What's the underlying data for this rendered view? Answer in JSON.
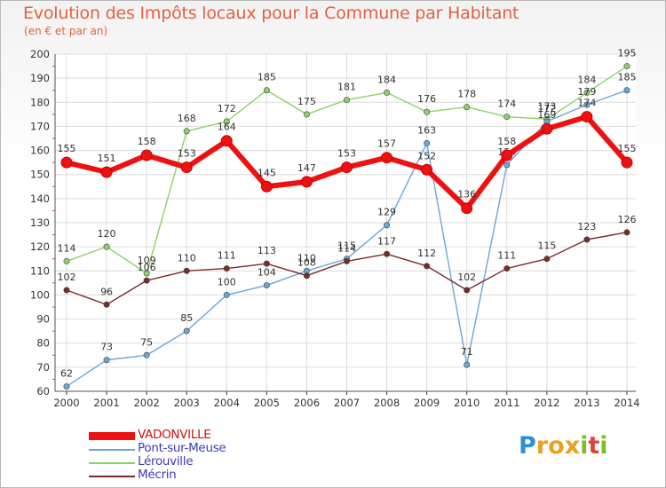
{
  "header": {
    "title": "Evolution des Impôts locaux pour la Commune par Habitant",
    "subtitle": "(en € et par an)"
  },
  "chart_data": {
    "type": "line",
    "title": "Evolution des Impôts locaux pour la Commune par Habitant",
    "ylabel": "(en € et par an)",
    "ylim": [
      60,
      200
    ],
    "yticks": [
      "60",
      "70",
      "80",
      "90",
      "100",
      "110",
      "120",
      "130",
      "140",
      "150",
      "160",
      "170",
      "180",
      "190",
      "200"
    ],
    "x": [
      "2000",
      "2001",
      "2002",
      "2003",
      "2004",
      "2005",
      "2006",
      "2007",
      "2008",
      "2009",
      "2010",
      "2011",
      "2012",
      "2013",
      "2014"
    ],
    "series": [
      {
        "name": "Lérouville",
        "color": "#8dd16a",
        "values": [
          114,
          120,
          109,
          168,
          172,
          185,
          175,
          181,
          184,
          176,
          178,
          174,
          173,
          184,
          195
        ]
      },
      {
        "name": "Pont-sur-Meuse",
        "color": "#6ba6d8",
        "values": [
          62,
          73,
          75,
          85,
          100,
          104,
          110,
          115,
          129,
          163,
          71,
          154,
          172,
          179,
          185
        ]
      },
      {
        "name": "Mécrin",
        "color": "#7b2a2a",
        "values": [
          102,
          96,
          106,
          110,
          111,
          113,
          108,
          114,
          117,
          112,
          102,
          111,
          115,
          123,
          126
        ]
      },
      {
        "name": "VADONVILLE",
        "color": "#ee1111",
        "values": [
          155,
          151,
          158,
          153,
          164,
          145,
          147,
          153,
          157,
          152,
          136,
          158,
          169,
          174,
          155
        ]
      }
    ],
    "legend": [
      "VADONVILLE",
      "Pont-sur-Meuse",
      "Lérouville",
      "Mécrin"
    ],
    "legend_colors": [
      "#ee1111",
      "#6ba6d8",
      "#8dd16a",
      "#7b2a2a"
    ],
    "legend_position": "bottom-left"
  },
  "brand": {
    "letters": [
      "P",
      "r",
      "o",
      "x",
      "i",
      "t",
      "i"
    ],
    "colors": [
      "#2e8fd8",
      "#e8a123",
      "#e8a123",
      "#e8a123",
      "#7bbf2b",
      "#e04040",
      "#7bbf2b"
    ]
  }
}
